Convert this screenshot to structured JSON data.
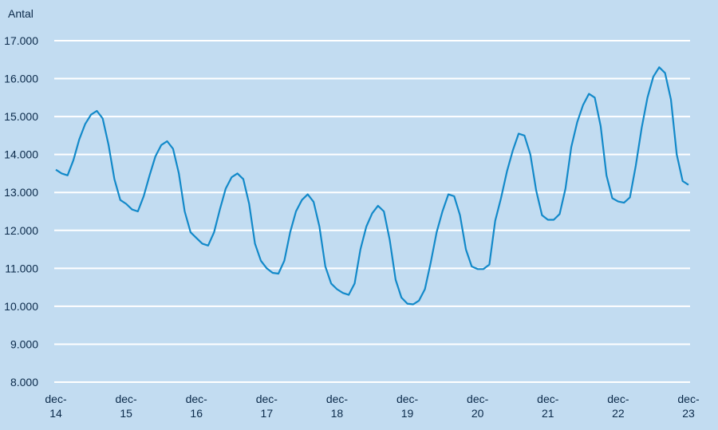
{
  "chart_data": {
    "type": "line",
    "ylabel": "Antal",
    "xlabel": "",
    "ylim": [
      8000,
      17000
    ],
    "grid": true,
    "background": "#c2dcf1",
    "line_color": "#1289c9",
    "grid_color": "#ffffff",
    "yticks": [
      8000,
      9000,
      10000,
      11000,
      12000,
      13000,
      14000,
      15000,
      16000,
      17000
    ],
    "ytick_labels": [
      "8.000",
      "9.000",
      "10.000",
      "11.000",
      "12.000",
      "13.000",
      "14.000",
      "15.000",
      "16.000",
      "17.000"
    ],
    "xticks": [
      {
        "index": 0,
        "line1": "dec-",
        "line2": "14"
      },
      {
        "index": 12,
        "line1": "dec-",
        "line2": "15"
      },
      {
        "index": 24,
        "line1": "dec-",
        "line2": "16"
      },
      {
        "index": 36,
        "line1": "dec-",
        "line2": "17"
      },
      {
        "index": 48,
        "line1": "dec-",
        "line2": "18"
      },
      {
        "index": 60,
        "line1": "dec-",
        "line2": "19"
      },
      {
        "index": 72,
        "line1": "dec-",
        "line2": "20"
      },
      {
        "index": 84,
        "line1": "dec-",
        "line2": "21"
      },
      {
        "index": 96,
        "line1": "dec-",
        "line2": "22"
      },
      {
        "index": 108,
        "line1": "dec-",
        "line2": "23"
      }
    ],
    "series": [
      {
        "values": [
          13600,
          13500,
          13450,
          13850,
          14400,
          14800,
          15050,
          15150,
          14950,
          14250,
          13350,
          12800,
          12700,
          12550,
          12500,
          12900,
          13450,
          13950,
          14250,
          14350,
          14150,
          13500,
          12500,
          11950,
          11800,
          11650,
          11600,
          11950,
          12550,
          13100,
          13400,
          13500,
          13350,
          12700,
          11650,
          11200,
          11000,
          10880,
          10860,
          11200,
          11950,
          12500,
          12800,
          12950,
          12750,
          12100,
          11050,
          10600,
          10450,
          10350,
          10300,
          10600,
          11500,
          12100,
          12450,
          12650,
          12500,
          11750,
          10700,
          10230,
          10070,
          10050,
          10150,
          10450,
          11150,
          11950,
          12500,
          12950,
          12900,
          12400,
          11500,
          11050,
          10980,
          10980,
          11100,
          12250,
          12850,
          13550,
          14100,
          14550,
          14500,
          14000,
          13050,
          12400,
          12280,
          12280,
          12430,
          13100,
          14200,
          14850,
          15300,
          15600,
          15500,
          14750,
          13450,
          12850,
          12760,
          12730,
          12870,
          13700,
          14700,
          15500,
          16050,
          16300,
          16150,
          15450,
          14000,
          13300,
          13200
        ]
      }
    ]
  }
}
